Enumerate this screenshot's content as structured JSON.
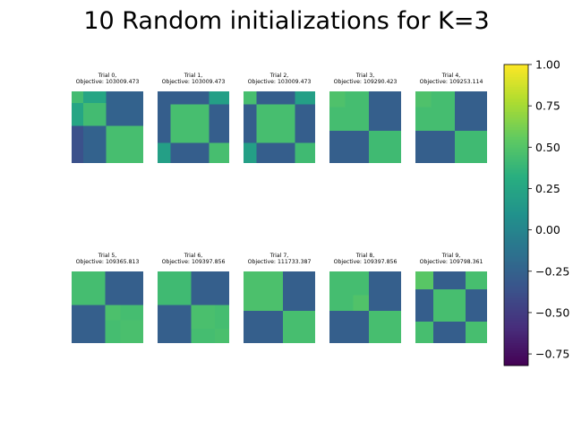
{
  "figure": {
    "title": "10 Random initializations for K=3"
  },
  "chart_data": {
    "type": "heatmap",
    "title": "10 Random initializations for K=3",
    "colormap": "viridis",
    "colorbar": {
      "range": [
        -0.82,
        1.0
      ],
      "ticks": [
        1.0,
        0.75,
        0.5,
        0.25,
        0.0,
        -0.25,
        -0.5,
        -0.75
      ],
      "tick_labels": [
        "1.00",
        "0.75",
        "0.50",
        "0.25",
        "0.00",
        "−0.25",
        "−0.50",
        "−0.75"
      ],
      "placement": "right"
    },
    "colors": {
      "high": "#3fbc73",
      "mid": "#25a18e",
      "low": "#3a538b",
      "lowest": "#40367f"
    },
    "panels": [
      {
        "label_line1": "Trial 0,",
        "label_line2": "Objective: 103009.473",
        "bands": [
          0.16,
          0.48
        ],
        "block_values": [
          [
            0.43,
            0.25,
            -0.25
          ],
          [
            0.25,
            0.43,
            -0.25
          ],
          [
            -0.37,
            -0.25,
            0.45
          ]
        ]
      },
      {
        "label_line1": "Trial 1,",
        "label_line2": "Objective: 103009.473",
        "bands": [
          0.18,
          0.72
        ],
        "block_values": [
          [
            -0.28,
            -0.28,
            0.2
          ],
          [
            -0.28,
            0.45,
            -0.28
          ],
          [
            0.2,
            -0.28,
            0.45
          ]
        ]
      },
      {
        "label_line1": "Trial 2,",
        "label_line2": "Objective: 103009.473",
        "bands": [
          0.18,
          0.72
        ],
        "block_values": [
          [
            0.45,
            -0.28,
            0.2
          ],
          [
            -0.28,
            0.45,
            -0.28
          ],
          [
            0.2,
            -0.28,
            0.42
          ]
        ]
      },
      {
        "label_line1": "Trial 3,",
        "label_line2": "Objective: 109290.423",
        "bands": [
          0.22,
          0.55
        ],
        "block_values": [
          [
            0.48,
            0.44,
            -0.27
          ],
          [
            0.44,
            0.44,
            -0.27
          ],
          [
            -0.27,
            -0.27,
            0.42
          ]
        ]
      },
      {
        "label_line1": "Trial 4,",
        "label_line2": "Objective: 109253.114",
        "bands": [
          0.22,
          0.55
        ],
        "block_values": [
          [
            0.48,
            0.44,
            -0.27
          ],
          [
            0.44,
            0.44,
            -0.27
          ],
          [
            -0.27,
            -0.27,
            0.42
          ]
        ]
      },
      {
        "label_line1": "Trial 5,",
        "label_line2": "Objective: 109365.813",
        "bands": [
          0.47,
          0.68
        ],
        "block_values": [
          [
            0.44,
            -0.27,
            -0.27
          ],
          [
            -0.27,
            0.47,
            0.44
          ],
          [
            -0.27,
            0.44,
            0.46
          ]
        ]
      },
      {
        "label_line1": "Trial 6,",
        "label_line2": "Objective: 109397.856",
        "bands": [
          0.47,
          0.8
        ],
        "block_values": [
          [
            0.42,
            -0.27,
            -0.27
          ],
          [
            -0.27,
            0.46,
            0.44
          ],
          [
            -0.27,
            0.44,
            0.46
          ]
        ]
      },
      {
        "label_line1": "Trial 7,",
        "label_line2": "Objective: 111733.387",
        "bands": [
          0.55,
          0.55
        ],
        "block_values": [
          [
            0.47,
            0.47,
            -0.27
          ],
          [
            0.47,
            0.47,
            -0.27
          ],
          [
            -0.27,
            -0.27,
            0.45
          ]
        ]
      },
      {
        "label_line1": "Trial 8,",
        "label_line2": "Objective: 109397.856",
        "bands": [
          0.33,
          0.55
        ],
        "block_values": [
          [
            0.44,
            0.44,
            -0.27
          ],
          [
            0.44,
            0.49,
            -0.27
          ],
          [
            -0.27,
            -0.27,
            0.45
          ]
        ]
      },
      {
        "label_line1": "Trial 9,",
        "label_line2": "Objective: 109798.361",
        "bands": [
          0.25,
          0.7
        ],
        "block_values": [
          [
            0.52,
            -0.28,
            0.45
          ],
          [
            -0.28,
            0.45,
            -0.28
          ],
          [
            0.45,
            -0.28,
            0.45
          ]
        ]
      }
    ]
  }
}
